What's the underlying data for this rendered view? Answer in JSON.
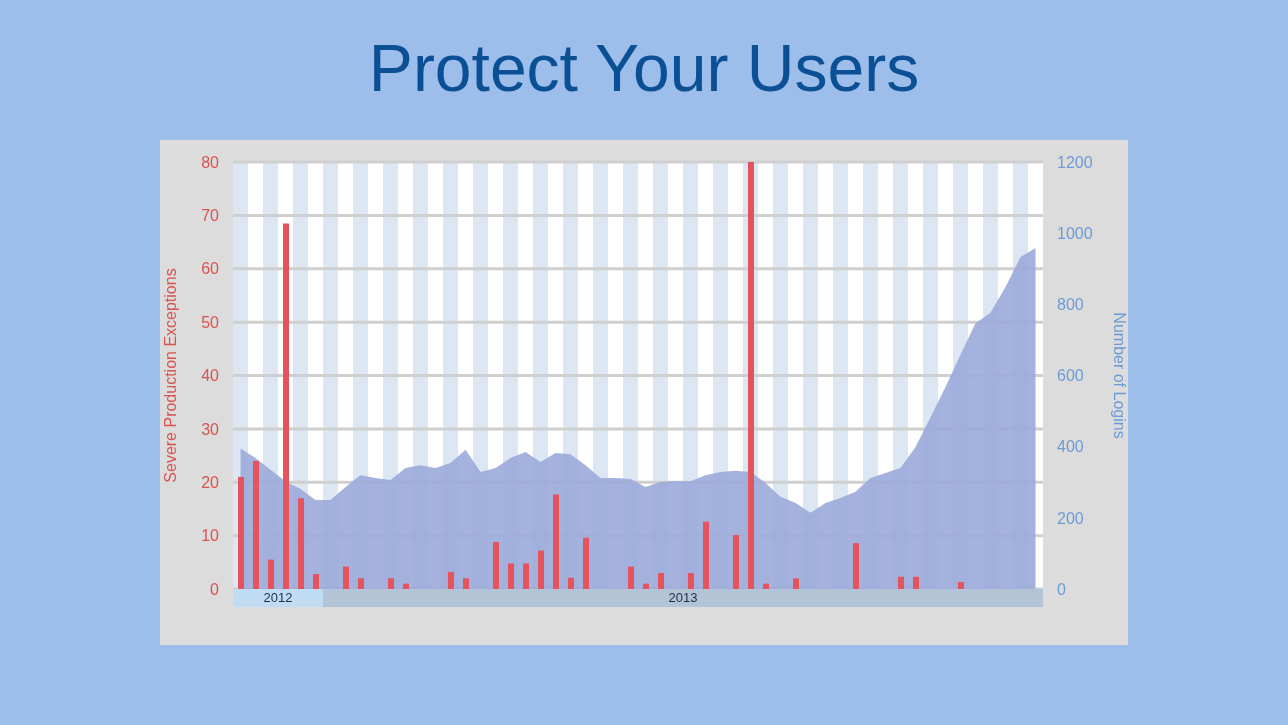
{
  "chart_data": {
    "type": "bar",
    "title": "Protect Your Users",
    "ylabel": "Severe Production Exceptions",
    "y2label": "Number of Logins",
    "categories": [
      null,
      null,
      null,
      null,
      null,
      null,
      null,
      null,
      null,
      null,
      null,
      null,
      null,
      null,
      null,
      null,
      null,
      null,
      null,
      null,
      null,
      null,
      null,
      null,
      null,
      null,
      null,
      null,
      null,
      null,
      null,
      null,
      null,
      null,
      null,
      null,
      null,
      null,
      null,
      null,
      null,
      null,
      null,
      null,
      null,
      null,
      null,
      null,
      null,
      null,
      null,
      null,
      null,
      null
    ],
    "series": [
      {
        "type": "area",
        "axis": "y2",
        "color": "#9aaad9",
        "values": [
          395,
          368,
          335,
          303,
          281,
          250,
          250,
          287,
          320,
          312,
          306,
          340,
          348,
          340,
          354,
          391,
          329,
          340,
          368,
          385,
          357,
          382,
          379,
          348,
          312,
          312,
          309,
          287,
          301,
          303,
          303,
          320,
          329,
          332,
          329,
          298,
          259,
          242,
          214,
          242,
          256,
          273,
          312,
          326,
          340,
          399,
          483,
          568,
          658,
          747,
          776,
          849,
          933,
          958
        ]
      },
      {
        "color": "#e5545c",
        "values": [
          21,
          24,
          5.5,
          68.5,
          17,
          2.8,
          0,
          4.2,
          2,
          0,
          2,
          1,
          0,
          0,
          3.2,
          2,
          0,
          8.8,
          4.8,
          4.8,
          7.2,
          17.7,
          2.1,
          9.6,
          0,
          0,
          4.2,
          1,
          3,
          0,
          3,
          12.6,
          0,
          10.1,
          80,
          1,
          0,
          2,
          0,
          0,
          0,
          8.6,
          0,
          0,
          2.3,
          2.3,
          0,
          0,
          1.3,
          0,
          0,
          0,
          0,
          0
        ]
      }
    ],
    "ylim": [
      0,
      80
    ],
    "yticks": [
      0,
      10,
      20,
      30,
      40,
      50,
      60,
      70,
      80
    ],
    "y2lim": [
      0,
      1200
    ],
    "y2ticks": [
      0,
      200,
      400,
      600,
      800,
      1000,
      1200
    ],
    "grid": "y",
    "annotations": [
      "2012",
      "2013"
    ]
  }
}
